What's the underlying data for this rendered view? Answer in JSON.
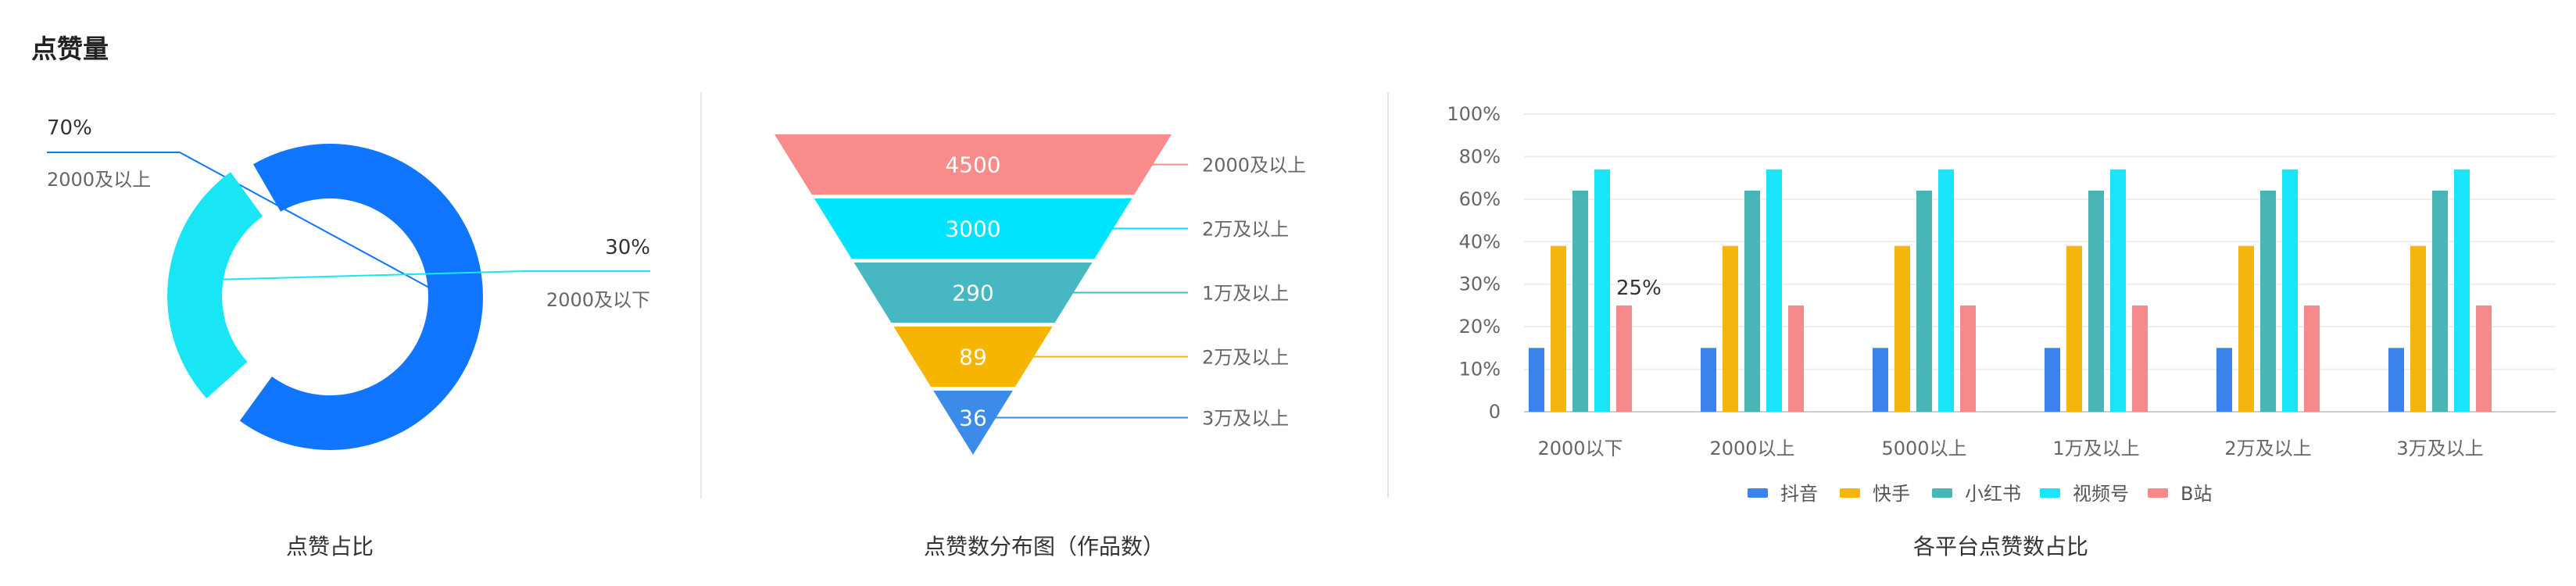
{
  "page": {
    "title": "点赞量"
  },
  "chart_data": [
    {
      "type": "pie",
      "title": "点赞占比",
      "slices": [
        {
          "label": "2000及以上",
          "value": 70,
          "percent_label": "70%",
          "color": "#1176ff"
        },
        {
          "label": "2000及以下",
          "value": 30,
          "percent_label": "30%",
          "color": "#19e6f5"
        }
      ]
    },
    {
      "type": "bar",
      "subtype": "funnel",
      "title": "点赞数分布图（作品数）",
      "stages": [
        {
          "label": "2000及以上",
          "value": 4500,
          "color": "#f98b8b"
        },
        {
          "label": "2万及以上",
          "value": 3000,
          "color": "#00e5ff"
        },
        {
          "label": "1万及以上",
          "value": 290,
          "color": "#47b8c2"
        },
        {
          "label": "2万及以上",
          "value": 89,
          "color": "#f6b500"
        },
        {
          "label": "3万及以上",
          "value": 36,
          "color": "#3d8be8"
        }
      ]
    },
    {
      "type": "bar",
      "title": "各平台点赞数占比",
      "categories": [
        "2000以下",
        "2000以上",
        "5000以上",
        "1万及以上",
        "2万及以上",
        "3万及以上"
      ],
      "ylim": [
        0,
        100
      ],
      "yticks": [
        "0",
        "10%",
        "20%",
        "30%",
        "40%",
        "60%",
        "80%",
        "100%"
      ],
      "grid": true,
      "legend": "bottom",
      "series": [
        {
          "name": "抖音",
          "color": "#3b82ec",
          "values": [
            15,
            15,
            15,
            15,
            15,
            15
          ]
        },
        {
          "name": "快手",
          "color": "#f4b60d",
          "values": [
            39,
            39,
            39,
            39,
            39,
            39
          ]
        },
        {
          "name": "小红书",
          "color": "#48b6b6",
          "values": [
            64,
            64,
            64,
            64,
            64,
            64
          ]
        },
        {
          "name": "视频号",
          "color": "#1ae4f8",
          "values": [
            74,
            74,
            74,
            74,
            74,
            74
          ]
        },
        {
          "name": "B站",
          "color": "#f68a8a",
          "values": [
            25,
            25,
            25,
            25,
            25,
            25
          ]
        }
      ],
      "annotations": [
        {
          "category": "2000以下",
          "series": "B站",
          "text": "25%"
        }
      ]
    }
  ]
}
